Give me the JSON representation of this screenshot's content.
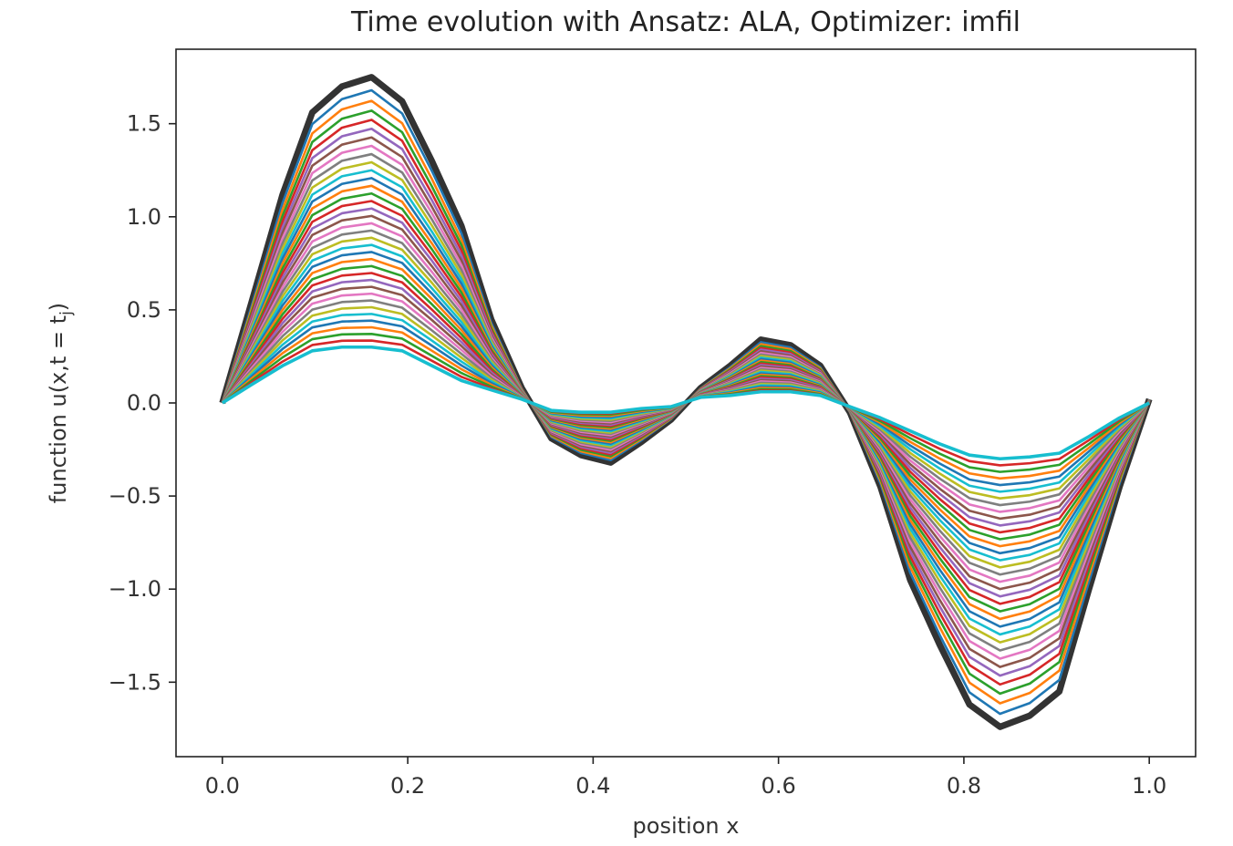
{
  "chart_data": {
    "type": "line",
    "title": "Time evolution with Ansatz: ALA, Optimizer: imfil",
    "xlabel": "position x",
    "ylabel": "function u(x,t = t",
    "ylabel_sub": "j",
    "ylabel_close": ")",
    "xlim": [
      -0.05,
      1.05
    ],
    "ylim": [
      -1.9,
      1.9
    ],
    "grid": false,
    "x_ticks": [
      {
        "value": 0.0,
        "label": "0.0"
      },
      {
        "value": 0.2,
        "label": "0.2"
      },
      {
        "value": 0.4,
        "label": "0.4"
      },
      {
        "value": 0.6,
        "label": "0.6"
      },
      {
        "value": 0.8,
        "label": "0.8"
      },
      {
        "value": 1.0,
        "label": "1.0"
      }
    ],
    "y_ticks": [
      {
        "value": 1.5,
        "label": "1.5"
      },
      {
        "value": 1.0,
        "label": "1.0"
      },
      {
        "value": 0.5,
        "label": "0.5"
      },
      {
        "value": 0.0,
        "label": "0.0"
      },
      {
        "value": -0.5,
        "label": "−0.5"
      },
      {
        "value": -1.0,
        "label": "−1.0"
      },
      {
        "value": -1.5,
        "label": "−1.5"
      }
    ],
    "x": [
      0.0,
      0.032,
      0.065,
      0.097,
      0.129,
      0.161,
      0.194,
      0.226,
      0.258,
      0.29,
      0.323,
      0.355,
      0.387,
      0.419,
      0.452,
      0.484,
      0.516,
      0.548,
      0.581,
      0.613,
      0.645,
      0.677,
      0.71,
      0.742,
      0.774,
      0.806,
      0.839,
      0.871,
      0.903,
      0.935,
      0.968,
      1.0
    ],
    "initial_profile": [
      0.0,
      0.55,
      1.12,
      1.56,
      1.7,
      1.75,
      1.62,
      1.3,
      0.95,
      0.45,
      0.08,
      -0.19,
      -0.28,
      -0.32,
      -0.21,
      -0.09,
      0.08,
      0.2,
      0.34,
      0.31,
      0.2,
      -0.05,
      -0.45,
      -0.95,
      -1.3,
      -1.62,
      -1.74,
      -1.68,
      -1.55,
      -1.0,
      -0.45,
      0.02
    ],
    "final_profile": [
      0.0,
      0.1,
      0.2,
      0.28,
      0.3,
      0.3,
      0.28,
      0.2,
      0.12,
      0.07,
      0.02,
      -0.04,
      -0.05,
      -0.05,
      -0.03,
      -0.02,
      0.03,
      0.04,
      0.06,
      0.06,
      0.04,
      -0.02,
      -0.08,
      -0.15,
      -0.22,
      -0.28,
      -0.3,
      -0.29,
      -0.27,
      -0.18,
      -0.08,
      0.0
    ],
    "series_count": 36,
    "initial_color": "#333333",
    "final_color": "#17becf",
    "palette": [
      "#1f77b4",
      "#ff7f0e",
      "#2ca02c",
      "#d62728",
      "#9467bd",
      "#8c564b",
      "#e377c2",
      "#7f7f7f",
      "#bcbd22",
      "#17becf"
    ]
  }
}
